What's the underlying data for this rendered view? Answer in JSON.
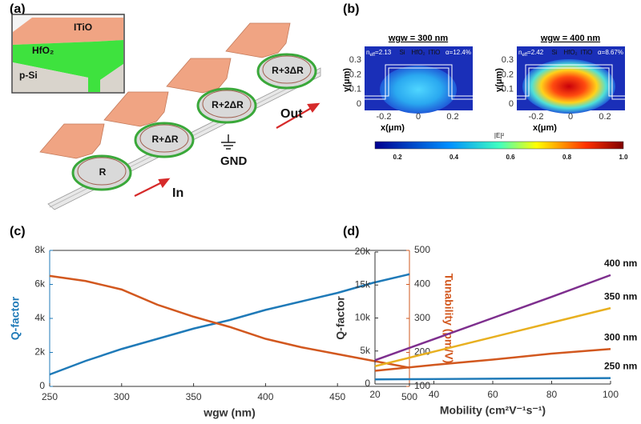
{
  "panel_a": {
    "label": "(a)",
    "inset": {
      "top": "ITiO",
      "middle": "HfO₂",
      "bottom": "p-Si"
    },
    "rings": [
      "R",
      "R+ΔR",
      "R+2ΔR",
      "R+3ΔR"
    ],
    "ground": "GND",
    "input": "In",
    "output": "Out"
  },
  "panel_b": {
    "label": "(b)",
    "plots": [
      {
        "title": "wgw = 300 nm",
        "layers": [
          "Si",
          "HfO₂",
          "ITiO"
        ],
        "neff": {
          "symbol": "n",
          "subscript": "eff",
          "text": "=2.13"
        },
        "alpha": "α=12.4%"
      },
      {
        "title": "wgw = 400 nm",
        "layers": [
          "Si",
          "HfO₂",
          "ITiO"
        ],
        "neff": {
          "symbol": "n",
          "subscript": "eff",
          "text": "=2.42"
        },
        "alpha": "α=8.67%"
      }
    ],
    "xlabel": "x(μm)",
    "ylabel": "y(μm)",
    "xticks": [
      "-0.2",
      "0",
      "0.2"
    ],
    "yticks": [
      "0",
      "0.1",
      "0.2",
      "0.3"
    ],
    "colorbar": {
      "label": "|E|²",
      "ticks": [
        "0.2",
        "0.4",
        "0.6",
        "0.8",
        "1.0"
      ]
    }
  },
  "chart_data": [
    {
      "type": "line",
      "panel_label": "(c)",
      "x": [
        250,
        275,
        300,
        325,
        350,
        375,
        400,
        425,
        450,
        475,
        500
      ],
      "series": [
        {
          "name": "Q-factor",
          "color": "#1f7ab8",
          "values": [
            700,
            1500,
            2200,
            2800,
            3400,
            3900,
            4500,
            5000,
            5500,
            6100,
            6600
          ]
        },
        {
          "name": "Tunability",
          "color": "#d2581f",
          "axis": "y2",
          "values": [
            425,
            410,
            385,
            340,
            305,
            275,
            240,
            215,
            195,
            175,
            155
          ]
        }
      ],
      "xlabel": "wgw (nm)",
      "ylabel": "Q-factor",
      "y2label": "Tunability (pm/V)",
      "xlim": [
        250,
        500
      ],
      "xticks": [
        250,
        300,
        350,
        400,
        450,
        500
      ],
      "ylim": [
        0,
        8000
      ],
      "yticks": [
        0,
        {
          "value": 2000,
          "label": "2k"
        },
        {
          "value": 4000,
          "label": "4k"
        },
        {
          "value": 6000,
          "label": "6k"
        },
        {
          "value": 8000,
          "label": "8k"
        }
      ],
      "y2lim": [
        100,
        500
      ],
      "y2ticks": [
        100,
        200,
        300,
        400,
        500
      ],
      "box": true
    },
    {
      "type": "line",
      "panel_label": "(d)",
      "x": [
        20,
        40,
        60,
        80,
        100
      ],
      "series": [
        {
          "name": "400 nm",
          "color": "#7e2f8e",
          "values": [
            3600,
            6800,
            10000,
            13200,
            16500
          ]
        },
        {
          "name": "350 nm",
          "color": "#e8b020",
          "values": [
            2700,
            4900,
            7100,
            9300,
            11500
          ]
        },
        {
          "name": "300 nm",
          "color": "#d2581f",
          "values": [
            2000,
            2900,
            3700,
            4600,
            5300
          ]
        },
        {
          "name": "250 nm",
          "color": "#1f7ab8",
          "values": [
            700,
            750,
            800,
            850,
            900
          ]
        }
      ],
      "xlabel": "Mobility (cm²V⁻¹s⁻¹)",
      "ylabel": "Q-factor",
      "xlim": [
        20,
        100
      ],
      "xticks": [
        20,
        40,
        60,
        80,
        100
      ],
      "ylim": [
        0,
        20000
      ],
      "yticks": [
        0,
        {
          "value": 5000,
          "label": "5k"
        },
        {
          "value": 10000,
          "label": "10k"
        },
        {
          "value": 15000,
          "label": "15k"
        },
        {
          "value": 20000,
          "label": "20k"
        }
      ],
      "legend": "line-end",
      "box": false
    }
  ]
}
